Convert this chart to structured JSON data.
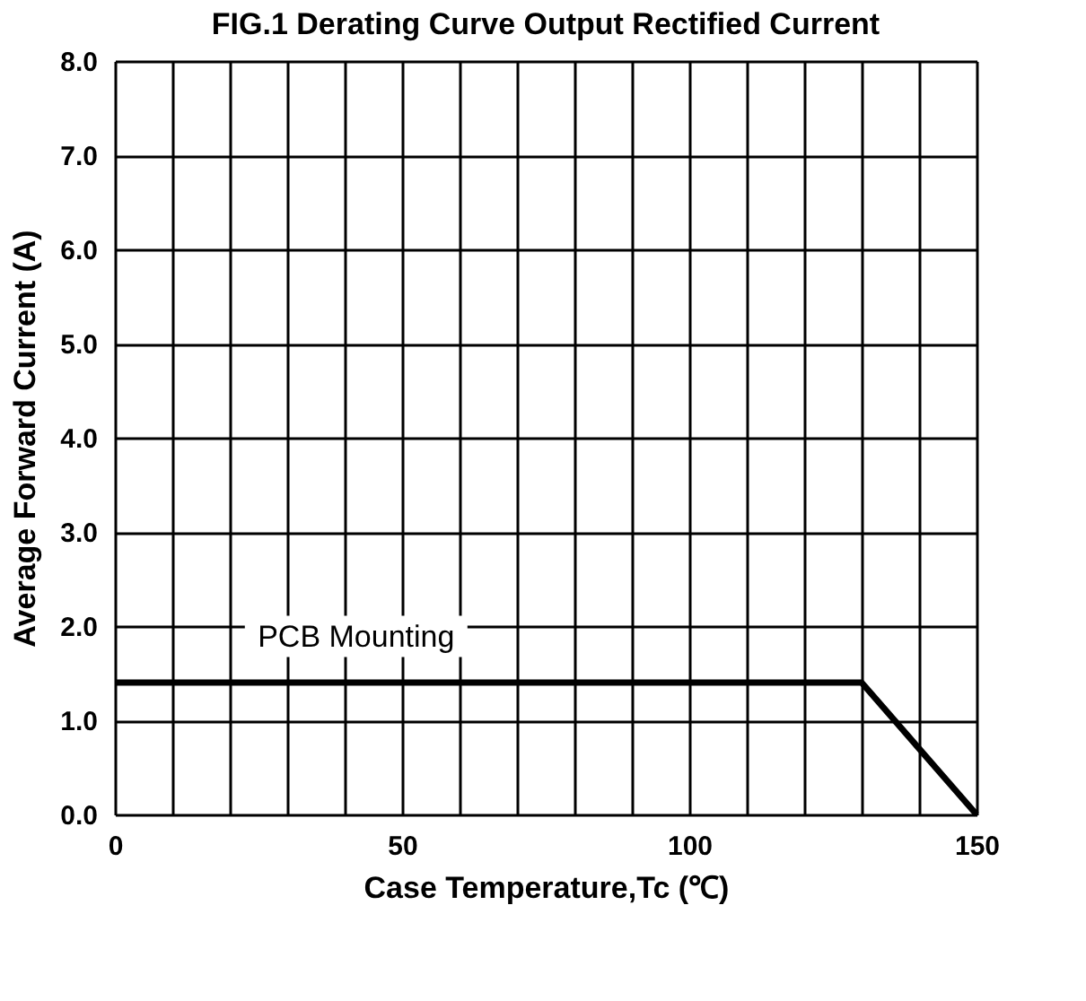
{
  "chart_data": {
    "type": "line",
    "title": "FIG.1 Derating Curve Output Rectified Current",
    "xlabel": "Case Temperature,Tc (℃)",
    "ylabel": "Average Forward Current (A)",
    "x": [
      0,
      130,
      150
    ],
    "series": [
      {
        "color": "#000000",
        "values": [
          1.4,
          1.4,
          0
        ]
      }
    ],
    "xlim": [
      0,
      150
    ],
    "xticks": [
      0,
      {
        "value": 10,
        "label": null
      },
      {
        "value": 20,
        "label": null
      },
      {
        "value": 30,
        "label": null
      },
      {
        "value": 40,
        "label": null
      },
      50,
      {
        "value": 60,
        "label": null
      },
      {
        "value": 70,
        "label": null
      },
      {
        "value": 80,
        "label": null
      },
      {
        "value": 90,
        "label": null
      },
      100,
      {
        "value": 110,
        "label": null
      },
      {
        "value": 120,
        "label": null
      },
      {
        "value": 130,
        "label": null
      },
      {
        "value": 140,
        "label": null
      },
      150
    ],
    "ylim": [
      0,
      8
    ],
    "yticks": [
      {
        "value": 0,
        "label": "0.0"
      },
      {
        "value": 1,
        "label": "1.0"
      },
      {
        "value": 2,
        "label": "2.0"
      },
      {
        "value": 3,
        "label": "3.0"
      },
      {
        "value": 4,
        "label": "4.0"
      },
      {
        "value": 5,
        "label": "5.0"
      },
      {
        "value": 6,
        "label": "6.0"
      },
      {
        "value": 7,
        "label": "7.0"
      },
      {
        "value": 8,
        "label": "8.0"
      }
    ],
    "grid": true,
    "marker": "none",
    "line_style": "solid",
    "annotations": [
      "PCB Mounting"
    ]
  }
}
